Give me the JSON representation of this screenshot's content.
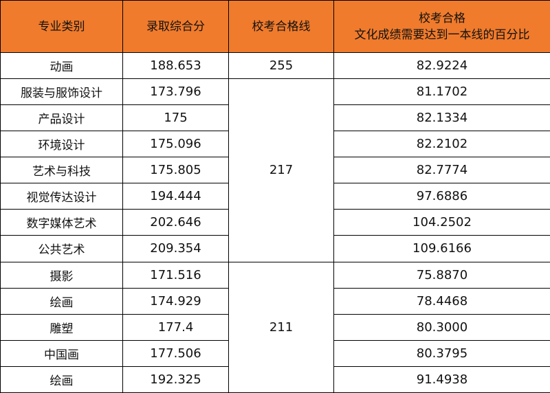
{
  "table": {
    "headers": {
      "major": "专业类别",
      "score": "录取综合分",
      "line": "校考合格线",
      "ratio_line1": "校考合格",
      "ratio_line2": "文化成绩需要达到一本线的百分比"
    },
    "rows": [
      {
        "major": "动画",
        "score": "188.653",
        "line": "255",
        "ratio": "82.9224"
      },
      {
        "major": "服装与服饰设计",
        "score": "173.796",
        "line": "217",
        "ratio": "81.1702"
      },
      {
        "major": "产品设计",
        "score": "175",
        "line": "217",
        "ratio": "82.1334"
      },
      {
        "major": "环境设计",
        "score": "175.096",
        "line": "217",
        "ratio": "82.2102"
      },
      {
        "major": "艺术与科技",
        "score": "175.805",
        "line": "217",
        "ratio": "82.7774"
      },
      {
        "major": "视觉传达设计",
        "score": "194.444",
        "line": "217",
        "ratio": "97.6886"
      },
      {
        "major": "数字媒体艺术",
        "score": "202.646",
        "line": "217",
        "ratio": "104.2502"
      },
      {
        "major": "公共艺术",
        "score": "209.354",
        "line": "217",
        "ratio": "109.6166"
      },
      {
        "major": "摄影",
        "score": "171.516",
        "line": "211",
        "ratio": "75.8870"
      },
      {
        "major": "绘画",
        "score": "174.929",
        "line": "211",
        "ratio": "78.4468"
      },
      {
        "major": "雕塑",
        "score": "177.4",
        "line": "211",
        "ratio": "80.3000"
      },
      {
        "major": "中国画",
        "score": "177.506",
        "line": "211",
        "ratio": "80.3795"
      },
      {
        "major": "绘画",
        "score": "192.325",
        "line": "211",
        "ratio": "91.4938"
      }
    ]
  },
  "colors": {
    "header_bg": "#f07b2c",
    "border": "#000000",
    "text": "#111111"
  }
}
